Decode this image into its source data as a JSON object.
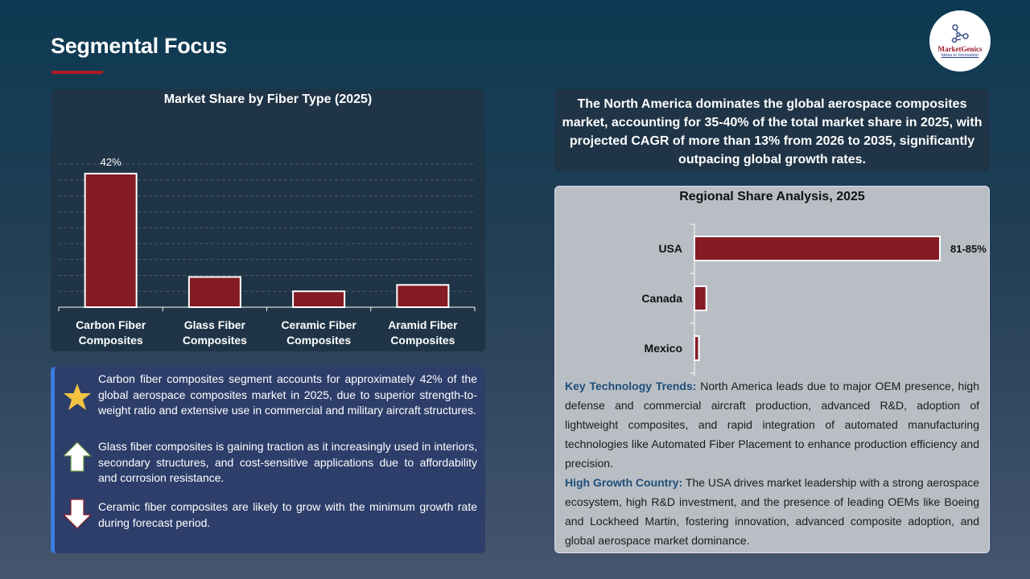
{
  "header": {
    "title": "Segmental Focus",
    "logo_text": "MarketGenics",
    "logo_tagline": "Ideas to Innovation"
  },
  "colors": {
    "bar": "#851b24",
    "accent": "#b01c24"
  },
  "chart_data": [
    {
      "type": "bar",
      "title": "Market Share by Fiber Type (2025)",
      "categories": [
        "Carbon Fiber Composites",
        "Glass Fiber Composites",
        "Ceramic Fiber Composites",
        "Aramid Fiber Composites"
      ],
      "category_lines": [
        [
          "Carbon Fiber",
          "Composites"
        ],
        [
          "Glass Fiber",
          "Composites"
        ],
        [
          "Ceramic Fiber",
          "Composites"
        ],
        [
          "Aramid Fiber",
          "Composites"
        ]
      ],
      "values": [
        42,
        9.5,
        5,
        7
      ],
      "data_labels": [
        "42%",
        "",
        "",
        ""
      ],
      "ylim": [
        0,
        45
      ],
      "grid": true,
      "unit": "%"
    },
    {
      "type": "bar",
      "orientation": "horizontal",
      "title": "Regional Share Analysis, 2025",
      "categories": [
        "USA",
        "Canada",
        "Mexico"
      ],
      "values": [
        83,
        4,
        1.5
      ],
      "data_labels": [
        "81-85%",
        "",
        ""
      ],
      "xlim": [
        0,
        83
      ],
      "grid": false,
      "unit": "%"
    }
  ],
  "bullets": [
    {
      "icon": "star-icon",
      "text": "Carbon fiber composites segment accounts for approximately 42% of the global aerospace composites market in 2025, due to superior strength-to-weight ratio and extensive use in commercial and military aircraft structures."
    },
    {
      "icon": "arrow-up-icon",
      "text": "Glass fiber composites is gaining traction as it increasingly used in interiors, secondary structures, and cost-sensitive applications due to affordability and corrosion resistance."
    },
    {
      "icon": "arrow-down-icon",
      "text": "Ceramic fiber composites are likely to grow with the minimum growth rate during forecast period."
    }
  ],
  "summary": "The North America dominates the global aerospace composites market, accounting for 35-40% of the total market share in 2025, with projected CAGR of more than 13% from 2026 to 2035, significantly outpacing global growth rates.",
  "trends": [
    {
      "label": "Key Technology Trends:",
      "text": " North America leads due to major OEM presence, high defense and commercial aircraft production, advanced R&D, adoption of lightweight composites, and rapid integration of automated manufacturing technologies like Automated Fiber Placement to enhance production efficiency and precision."
    },
    {
      "label": "High Growth Country:",
      "text": " The USA drives market leadership with a strong aerospace ecosystem, high R&D investment, and the presence of leading OEMs like Boeing and Lockheed Martin, fostering innovation, advanced composite adoption, and global aerospace market dominance."
    }
  ]
}
